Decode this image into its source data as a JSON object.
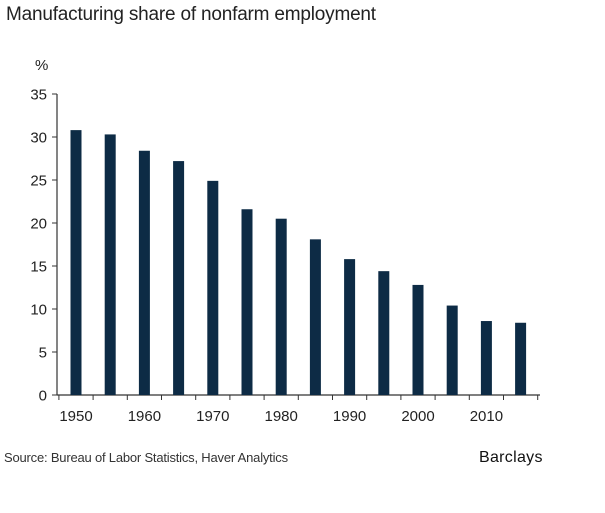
{
  "title": "Manufacturing share of nonfarm employment",
  "source": "Source: Bureau of Labor Statistics, Haver Analytics",
  "brand": "Barclays",
  "colors": {
    "bar": "#0d2b45",
    "axis": "#333333"
  },
  "chart_data": {
    "type": "bar",
    "title": "Manufacturing share of nonfarm employment",
    "xlabel": "",
    "ylabel": "%",
    "ylim": [
      0,
      35
    ],
    "yticks": [
      0,
      5,
      10,
      15,
      20,
      25,
      30,
      35
    ],
    "xtick_labels": [
      "1950",
      "1960",
      "1970",
      "1980",
      "1990",
      "2000",
      "2010"
    ],
    "grid": false,
    "categories": [
      "1950",
      "1955",
      "1960",
      "1965",
      "1970",
      "1975",
      "1980",
      "1985",
      "1990",
      "1995",
      "2000",
      "2005",
      "2010",
      "2015"
    ],
    "values": [
      30.8,
      30.3,
      28.4,
      27.2,
      24.9,
      21.6,
      20.5,
      18.1,
      15.8,
      14.4,
      12.8,
      10.4,
      8.6,
      8.4
    ]
  }
}
